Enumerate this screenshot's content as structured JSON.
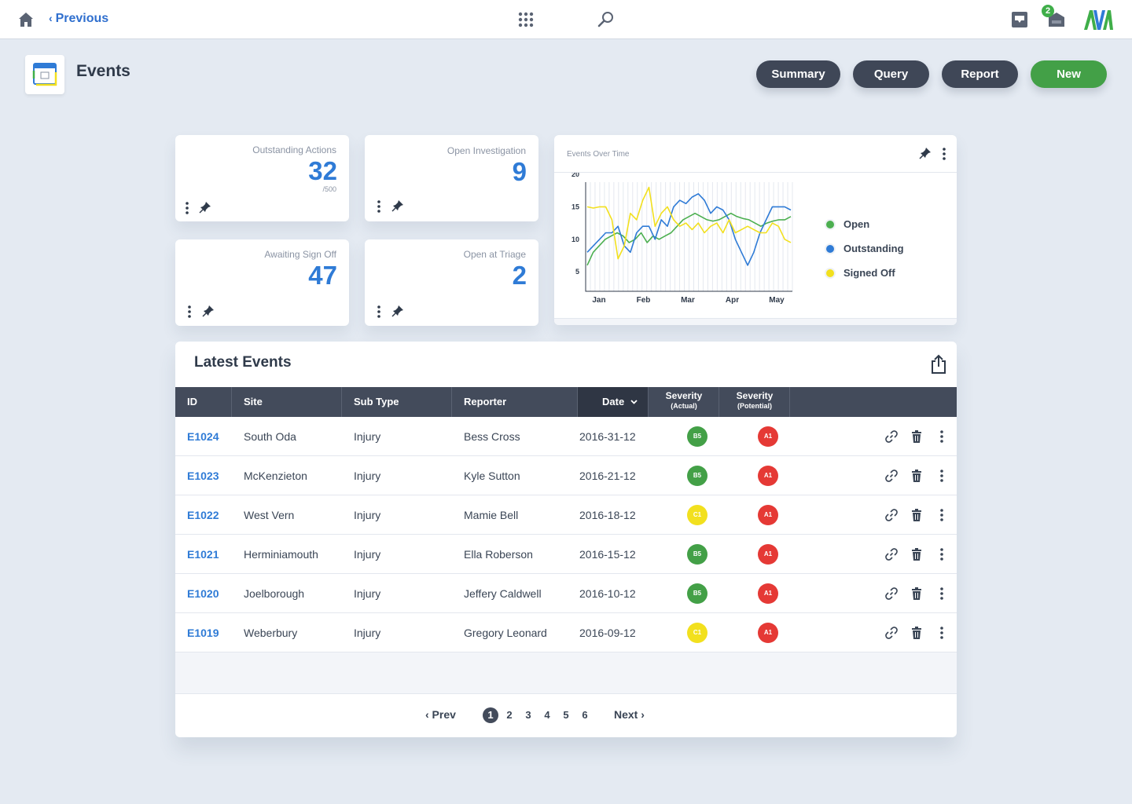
{
  "topbar": {
    "previous_label": "Previous",
    "notification_count": "2",
    "logo_text": "AVA"
  },
  "page": {
    "title": "Events",
    "buttons": {
      "summary": "Summary",
      "query": "Query",
      "report": "Report",
      "new": "New"
    }
  },
  "stats": [
    {
      "label": "Outstanding Actions",
      "value": "32",
      "sub": "/500"
    },
    {
      "label": "Open Investigation",
      "value": "9"
    },
    {
      "label": "Awaiting Sign Off",
      "value": "47"
    },
    {
      "label": "Open at Triage",
      "value": "2"
    }
  ],
  "chart_data": {
    "type": "line",
    "title": "Events Over Time",
    "x_tick_labels": [
      "Jan",
      "Feb",
      "Mar",
      "Apr",
      "May"
    ],
    "y_ticks": [
      5,
      10,
      15,
      20
    ],
    "ylim": [
      2,
      20
    ],
    "grid": "vertical lines",
    "legend_position": "right",
    "series": [
      {
        "name": "Open",
        "color": "#4caf50",
        "values": [
          6,
          8,
          9,
          10,
          10.5,
          11,
          10.5,
          9.5,
          10,
          11,
          9.5,
          10.5,
          10,
          10.5,
          11,
          12,
          13,
          13.5,
          14,
          13.5,
          13,
          12.8,
          13,
          13.5,
          14,
          13.5,
          13.2,
          13,
          12.5,
          12,
          12.5,
          12.8,
          13,
          13,
          13.5
        ]
      },
      {
        "name": "Outstanding",
        "color": "#2f7bd6",
        "values": [
          8,
          9,
          10,
          11,
          11,
          12,
          9,
          8,
          11,
          12,
          12,
          10,
          13,
          12,
          15,
          16,
          15.5,
          16.5,
          17,
          16,
          14,
          15,
          14.5,
          13,
          10,
          8,
          6,
          8,
          11,
          13,
          15,
          15,
          15,
          14.5
        ]
      },
      {
        "name": "Signed Off",
        "color": "#f2e01e",
        "values": [
          15,
          14.8,
          15,
          15,
          13,
          7,
          9,
          14,
          13,
          16,
          18,
          12,
          14,
          15,
          13,
          12,
          12.5,
          11.5,
          12.5,
          11,
          12,
          12.5,
          11,
          13,
          11,
          11.5,
          12,
          11.5,
          11,
          11,
          12.5,
          12,
          10,
          9.5
        ]
      }
    ]
  },
  "table": {
    "title": "Latest Events",
    "columns": {
      "id": "ID",
      "site": "Site",
      "subtype": "Sub Type",
      "reporter": "Reporter",
      "date": "Date",
      "sev_actual": "Severity",
      "sev_actual_sub": "(Actual)",
      "sev_potential": "Severity",
      "sev_potential_sub": "(Potential)"
    },
    "rows": [
      {
        "id": "E1024",
        "site": "South Oda",
        "subtype": "Injury",
        "reporter": "Bess Cross",
        "date": "2016-31-12",
        "sev_actual": "B5",
        "sev_actual_color": "#43a047",
        "sev_potential": "A1",
        "sev_potential_color": "#e53935"
      },
      {
        "id": "E1023",
        "site": "McKenzieton",
        "subtype": "Injury",
        "reporter": "Kyle Sutton",
        "date": "2016-21-12",
        "sev_actual": "B5",
        "sev_actual_color": "#43a047",
        "sev_potential": "A1",
        "sev_potential_color": "#e53935"
      },
      {
        "id": "E1022",
        "site": "West Vern",
        "subtype": "Injury",
        "reporter": "Mamie Bell",
        "date": "2016-18-12",
        "sev_actual": "C1",
        "sev_actual_color": "#f2e01e",
        "sev_potential": "A1",
        "sev_potential_color": "#e53935"
      },
      {
        "id": "E1021",
        "site": "Herminiamouth",
        "subtype": "Injury",
        "reporter": "Ella Roberson",
        "date": "2016-15-12",
        "sev_actual": "B5",
        "sev_actual_color": "#43a047",
        "sev_potential": "A1",
        "sev_potential_color": "#e53935"
      },
      {
        "id": "E1020",
        "site": "Joelborough",
        "subtype": "Injury",
        "reporter": "Jeffery Caldwell",
        "date": "2016-10-12",
        "sev_actual": "B5",
        "sev_actual_color": "#43a047",
        "sev_potential": "A1",
        "sev_potential_color": "#e53935"
      },
      {
        "id": "E1019",
        "site": "Weberbury",
        "subtype": "Injury",
        "reporter": "Gregory Leonard",
        "date": "2016-09-12",
        "sev_actual": "C1",
        "sev_actual_color": "#f2e01e",
        "sev_potential": "A1",
        "sev_potential_color": "#e53935"
      }
    ]
  },
  "pagination": {
    "prev": "‹ Prev",
    "next": "Next ›",
    "pages": [
      "1",
      "2",
      "3",
      "4",
      "5",
      "6"
    ],
    "current": "1"
  },
  "icons": {
    "home": "home-icon",
    "apps": "apps-grid-icon",
    "search": "search-icon",
    "inbox": "inbox-icon",
    "messages": "messages-icon",
    "export": "export-icon",
    "link": "link-icon",
    "delete": "trash-icon",
    "more": "more-vertical-icon",
    "pin": "pin-icon"
  }
}
